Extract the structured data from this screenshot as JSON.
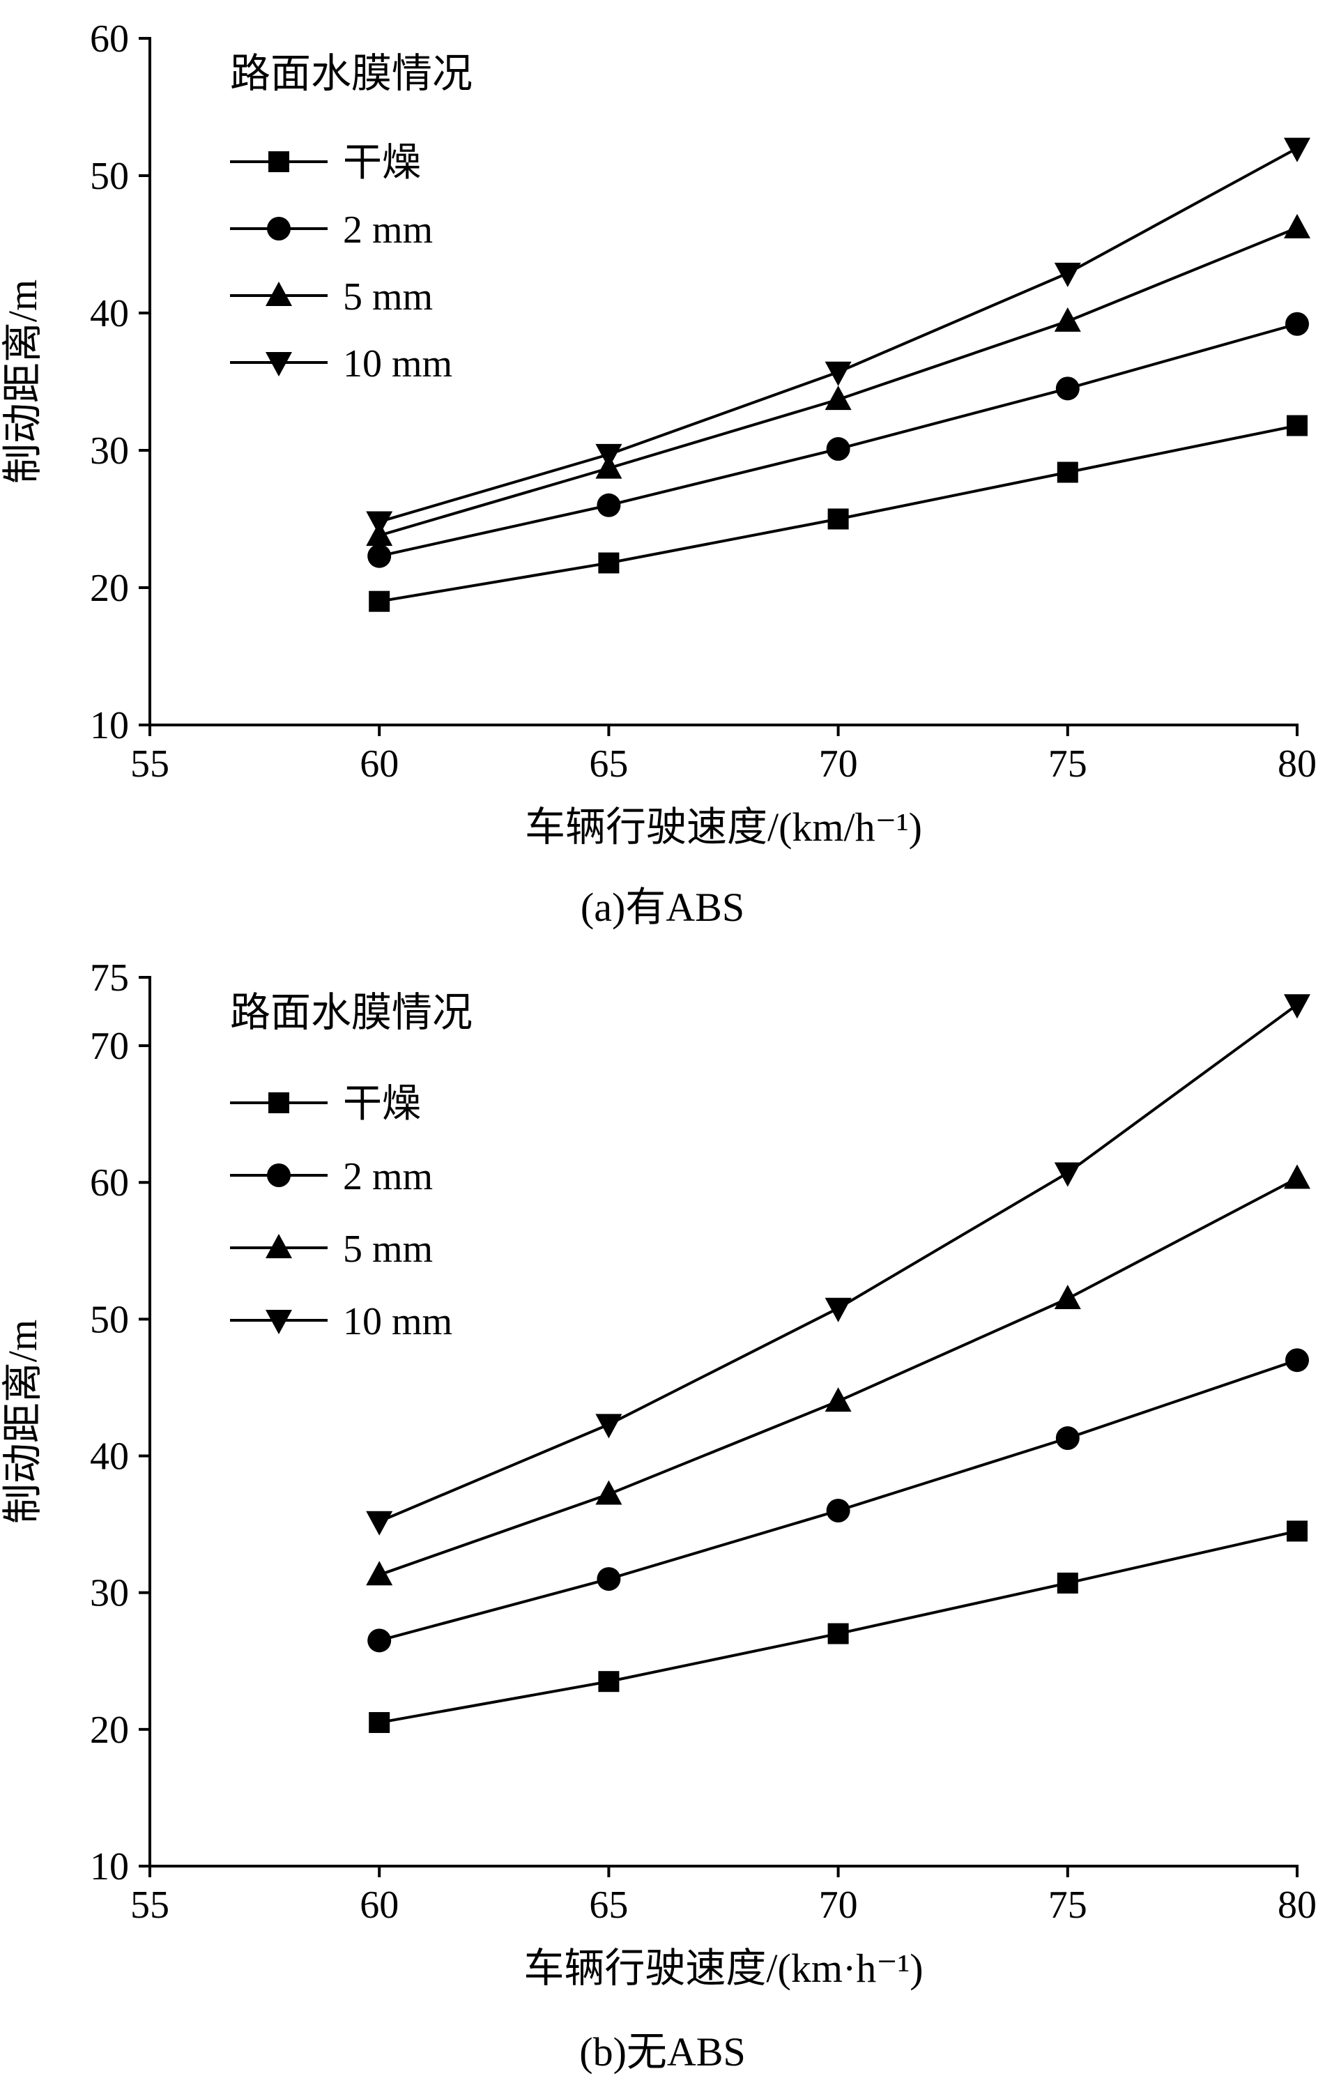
{
  "page": {
    "background": "#ffffff"
  },
  "colors": {
    "line": "#000000",
    "text": "#000000"
  },
  "chart_data": [
    {
      "type": "line",
      "caption": "(a)有ABS",
      "xlabel": "车辆行驶速度/(km/h⁻¹)",
      "ylabel": "制动距离/m",
      "legend_title": "路面水膜情况",
      "legend_position": "upper-left-inside",
      "grid": false,
      "x": [
        60,
        65,
        70,
        75,
        80
      ],
      "xlim": [
        55,
        80
      ],
      "xticks": [
        55,
        60,
        65,
        70,
        75,
        80
      ],
      "ylim": [
        10,
        60
      ],
      "yticks": [
        10,
        20,
        30,
        40,
        50,
        60
      ],
      "series": [
        {
          "name": "干燥",
          "marker": "square",
          "values": [
            19.0,
            21.8,
            25.0,
            28.4,
            31.8
          ]
        },
        {
          "name": "2 mm",
          "marker": "circle",
          "values": [
            22.3,
            26.0,
            30.1,
            34.5,
            39.2
          ]
        },
        {
          "name": "5 mm",
          "marker": "triangle-up",
          "values": [
            23.8,
            28.7,
            33.7,
            39.4,
            46.2
          ]
        },
        {
          "name": "10 mm",
          "marker": "triangle-down",
          "values": [
            24.8,
            29.7,
            35.7,
            42.9,
            52.0
          ]
        }
      ]
    },
    {
      "type": "line",
      "caption": "(b)无ABS",
      "xlabel": "车辆行驶速度/(km·h⁻¹)",
      "ylabel": "制动距离/m",
      "legend_title": "路面水膜情况",
      "legend_position": "upper-left-inside",
      "grid": false,
      "x": [
        60,
        65,
        70,
        75,
        80
      ],
      "xlim": [
        55,
        80
      ],
      "xticks": [
        55,
        60,
        65,
        70,
        75,
        80
      ],
      "ylim": [
        10,
        75
      ],
      "yticks": [
        10,
        20,
        30,
        40,
        50,
        60,
        70,
        75
      ],
      "series": [
        {
          "name": "干燥",
          "marker": "square",
          "values": [
            20.5,
            23.5,
            27.0,
            30.7,
            34.5
          ]
        },
        {
          "name": "2 mm",
          "marker": "circle",
          "values": [
            26.5,
            31.0,
            36.0,
            41.3,
            47.0
          ]
        },
        {
          "name": "5 mm",
          "marker": "triangle-up",
          "values": [
            31.3,
            37.2,
            44.0,
            51.5,
            60.3
          ]
        },
        {
          "name": "10 mm",
          "marker": "triangle-down",
          "values": [
            35.2,
            42.3,
            50.8,
            60.7,
            73.0
          ]
        }
      ]
    }
  ]
}
